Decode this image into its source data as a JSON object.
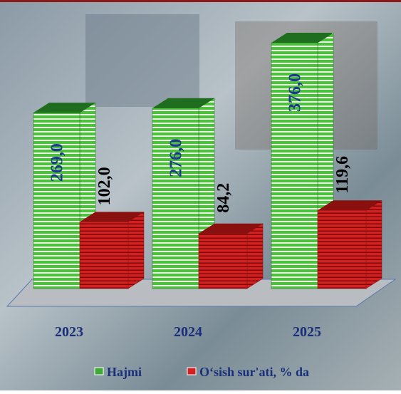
{
  "chart_data": {
    "type": "bar3d",
    "categories": [
      "2023",
      "2024",
      "2025"
    ],
    "series": [
      {
        "name": "Hajmi",
        "color": "#2e9e2e",
        "values": [
          269.0,
          276.0,
          376.0
        ],
        "value_labels": [
          "269,0",
          "276,0",
          "376,0"
        ]
      },
      {
        "name": "O‘sish sur'ati, % da",
        "color": "#d92020",
        "values": [
          102.0,
          84.2,
          119.6
        ],
        "value_labels": [
          "102,0",
          "84,2",
          "119,6"
        ]
      }
    ]
  }
}
